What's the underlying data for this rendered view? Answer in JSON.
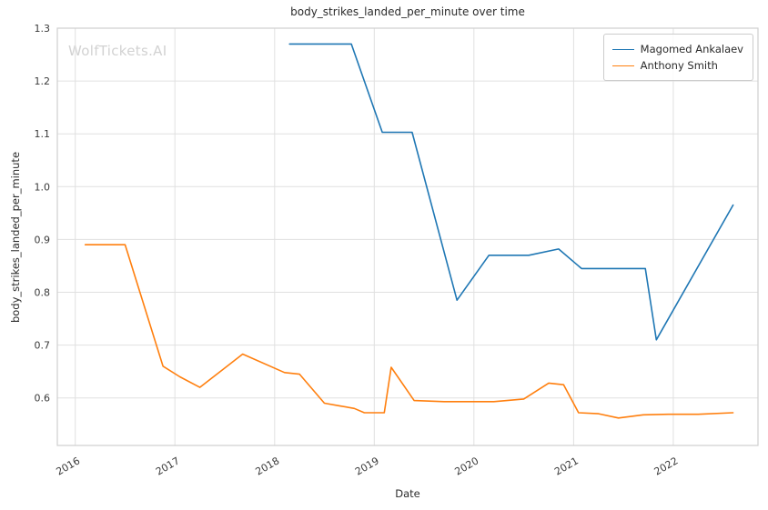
{
  "watermark": "WolfTickets.AI",
  "chart_data": {
    "type": "line",
    "title": "body_strikes_landed_per_minute over time",
    "xlabel": "Date",
    "ylabel": "body_strikes_landed_per_minute",
    "grid": true,
    "legend_position": "upper right",
    "xlim": [
      2015.82,
      2022.85
    ],
    "ylim": [
      0.51,
      1.3
    ],
    "x_ticks": [
      2016,
      2017,
      2018,
      2019,
      2020,
      2021,
      2022
    ],
    "y_ticks": [
      0.6,
      0.7,
      0.8,
      0.9,
      1.0,
      1.1,
      1.2,
      1.3
    ],
    "series": [
      {
        "name": "Magomed Ankalaev",
        "color": "#1f77b4",
        "x": [
          2018.15,
          2018.77,
          2019.08,
          2019.38,
          2019.83,
          2020.15,
          2020.55,
          2020.85,
          2021.08,
          2021.72,
          2021.83,
          2022.6
        ],
        "y": [
          1.27,
          1.27,
          1.103,
          1.103,
          0.785,
          0.87,
          0.87,
          0.882,
          0.845,
          0.845,
          0.71,
          0.965
        ]
      },
      {
        "name": "Anthony Smith",
        "color": "#ff7f0e",
        "x": [
          2016.1,
          2016.5,
          2016.88,
          2017.05,
          2017.25,
          2017.68,
          2018.1,
          2018.25,
          2018.5,
          2018.65,
          2018.8,
          2018.9,
          2019.1,
          2019.17,
          2019.4,
          2019.7,
          2020.2,
          2020.5,
          2020.75,
          2020.9,
          2021.05,
          2021.25,
          2021.45,
          2021.7,
          2021.95,
          2022.25,
          2022.6
        ],
        "y": [
          0.89,
          0.89,
          0.66,
          0.64,
          0.62,
          0.683,
          0.648,
          0.645,
          0.59,
          0.585,
          0.58,
          0.572,
          0.572,
          0.658,
          0.595,
          0.593,
          0.593,
          0.598,
          0.628,
          0.625,
          0.572,
          0.57,
          0.562,
          0.568,
          0.569,
          0.569,
          0.572
        ]
      }
    ]
  }
}
